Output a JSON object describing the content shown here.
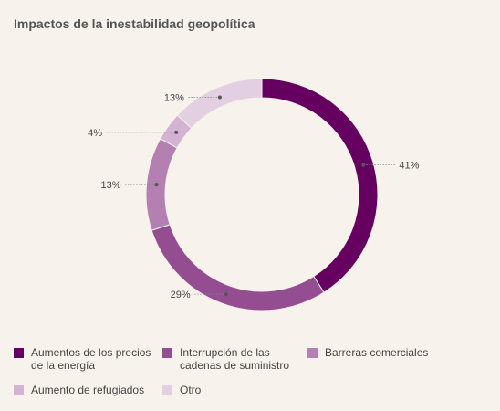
{
  "chart_data": {
    "type": "pie",
    "title": "Impactos de la inestabilidad geopolítica",
    "slices": [
      {
        "label": "Aumentos de los precios de la energía",
        "value": 41,
        "value_label": "41%",
        "color": "#650060"
      },
      {
        "label": "Interrupción de las cadenas de suministro",
        "value": 29,
        "value_label": "29%",
        "color": "#944d91"
      },
      {
        "label": "Barreras comerciales",
        "value": 13,
        "value_label": "13%",
        "color": "#b47fb1"
      },
      {
        "label": "Aumento de refugiados",
        "value": 4,
        "value_label": "4%",
        "color": "#d4b2d3"
      },
      {
        "label": "Otro",
        "value": 13,
        "value_label": "13%",
        "color": "#e3cfe2"
      }
    ],
    "legend_position": "bottom"
  }
}
